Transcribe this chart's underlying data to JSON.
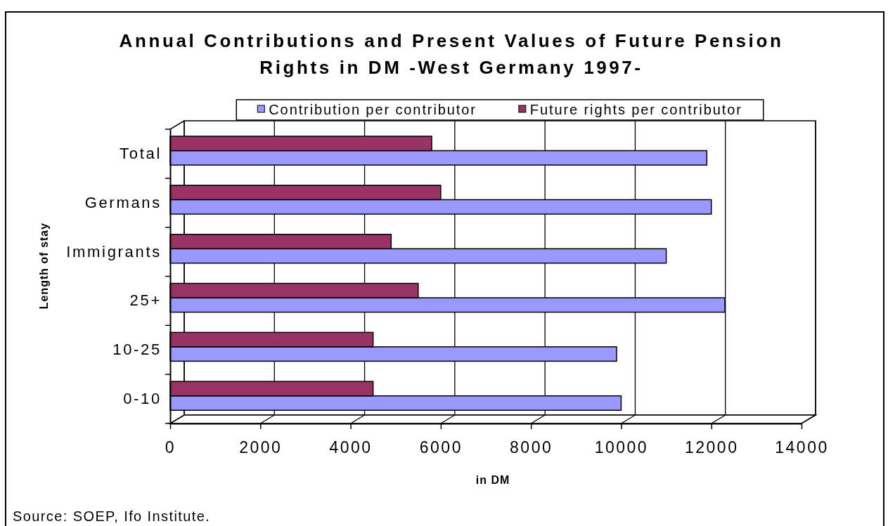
{
  "chart_data": {
    "type": "bar",
    "orientation": "horizontal",
    "title": "Annual Contributions and Present Values of Future Pension Rights in DM -West Germany 1997-",
    "xlabel": "in DM",
    "ylabel": "Length of stay",
    "categories": [
      "Total",
      "Germans",
      "Immigrants",
      "25+",
      "10-25",
      "0-10"
    ],
    "series": [
      {
        "name": "Contribution per contributor",
        "color": "#9999ff",
        "values": [
          11900,
          12000,
          11000,
          12300,
          9900,
          10000
        ]
      },
      {
        "name": "Future rights per contributor",
        "color": "#993366",
        "values": [
          5800,
          6000,
          4900,
          5500,
          4500,
          4500
        ]
      }
    ],
    "xlim": [
      0,
      14000
    ],
    "xticks": [
      0,
      2000,
      4000,
      6000,
      8000,
      10000,
      12000,
      14000
    ],
    "grid": "x",
    "legend": "top",
    "annotations": [
      "Source: SOEP, Ifo Institute."
    ]
  }
}
